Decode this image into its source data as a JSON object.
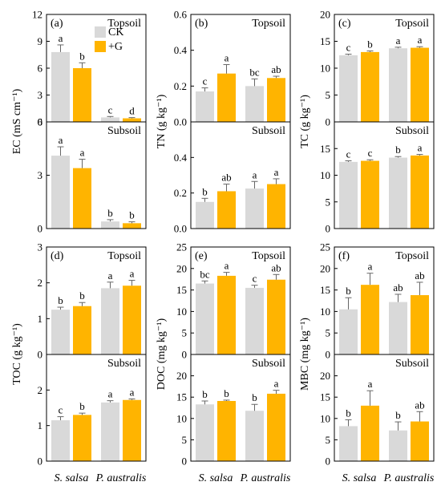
{
  "colors": {
    "CK": "#d9d9d9",
    "G": "#ffb400",
    "axis": "#000000",
    "error": "#666666"
  },
  "categories": [
    "S. salsa",
    "P. australis"
  ],
  "legend": {
    "entries": [
      {
        "key": "CK",
        "label": "CK"
      },
      {
        "key": "G",
        "label": "+G"
      }
    ],
    "position": "top-right of panel (a)"
  },
  "chart_data": [
    {
      "type": "bar",
      "panel": "(a)",
      "ylabel": "EC (mS cm⁻¹)",
      "categories": [
        "S. salsa",
        "P. australis"
      ],
      "subplots": [
        {
          "layer": "Topsoil",
          "ylim": [
            0,
            12
          ],
          "yticks": [
            0,
            3,
            6,
            9,
            12
          ],
          "series": [
            {
              "name": "CK",
              "values": [
                7.8,
                0.5
              ],
              "errors": [
                0.8,
                0.1
              ],
              "sig": [
                "a",
                "c"
              ]
            },
            {
              "name": "+G",
              "values": [
                6.0,
                0.4
              ],
              "errors": [
                0.6,
                0.08
              ],
              "sig": [
                "b",
                "d"
              ]
            }
          ]
        },
        {
          "layer": "Subsoil",
          "ylim": [
            0,
            6
          ],
          "yticks": [
            0,
            3,
            6
          ],
          "series": [
            {
              "name": "CK",
              "values": [
                4.1,
                0.4
              ],
              "errors": [
                0.5,
                0.1
              ],
              "sig": [
                "a",
                "b"
              ]
            },
            {
              "name": "+G",
              "values": [
                3.4,
                0.3
              ],
              "errors": [
                0.5,
                0.08
              ],
              "sig": [
                "a",
                "b"
              ]
            }
          ]
        }
      ]
    },
    {
      "type": "bar",
      "panel": "(b)",
      "ylabel": "TN (g kg⁻¹)",
      "categories": [
        "S. salsa",
        "P. australis"
      ],
      "subplots": [
        {
          "layer": "Topsoil",
          "ylim": [
            0,
            0.6
          ],
          "yticks": [
            0.0,
            0.2,
            0.4,
            0.6
          ],
          "series": [
            {
              "name": "CK",
              "values": [
                0.17,
                0.2
              ],
              "errors": [
                0.02,
                0.04
              ],
              "sig": [
                "c",
                "bc"
              ]
            },
            {
              "name": "+G",
              "values": [
                0.27,
                0.245
              ],
              "errors": [
                0.05,
                0.01
              ],
              "sig": [
                "a",
                "ab"
              ]
            }
          ]
        },
        {
          "layer": "Subsoil",
          "ylim": [
            0,
            0.6
          ],
          "yticks": [
            0.0,
            0.2,
            0.4
          ],
          "series": [
            {
              "name": "CK",
              "values": [
                0.15,
                0.225
              ],
              "errors": [
                0.02,
                0.04
              ],
              "sig": [
                "b",
                "a"
              ]
            },
            {
              "name": "+G",
              "values": [
                0.21,
                0.25
              ],
              "errors": [
                0.04,
                0.03
              ],
              "sig": [
                "ab",
                "a"
              ]
            }
          ]
        }
      ]
    },
    {
      "type": "bar",
      "panel": "(c)",
      "ylabel": "TC (g kg⁻¹)",
      "categories": [
        "S. salsa",
        "P. australis"
      ],
      "subplots": [
        {
          "layer": "Topsoil",
          "ylim": [
            0,
            20
          ],
          "yticks": [
            0,
            5,
            10,
            15,
            20
          ],
          "series": [
            {
              "name": "CK",
              "values": [
                12.4,
                13.7
              ],
              "errors": [
                0.2,
                0.2
              ],
              "sig": [
                "c",
                "a"
              ]
            },
            {
              "name": "+G",
              "values": [
                13.0,
                13.8
              ],
              "errors": [
                0.2,
                0.2
              ],
              "sig": [
                "b",
                "a"
              ]
            }
          ]
        },
        {
          "layer": "Subsoil",
          "ylim": [
            0,
            20
          ],
          "yticks": [
            0,
            5,
            10,
            15
          ],
          "series": [
            {
              "name": "CK",
              "values": [
                12.5,
                13.3
              ],
              "errors": [
                0.2,
                0.2
              ],
              "sig": [
                "c",
                "b"
              ]
            },
            {
              "name": "+G",
              "values": [
                12.7,
                13.7
              ],
              "errors": [
                0.2,
                0.2
              ],
              "sig": [
                "c",
                "a"
              ]
            }
          ]
        }
      ]
    },
    {
      "type": "bar",
      "panel": "(d)",
      "ylabel": "TOC (g kg⁻¹)",
      "categories": [
        "S. salsa",
        "P. australis"
      ],
      "subplots": [
        {
          "layer": "Topsoil",
          "ylim": [
            0,
            3
          ],
          "yticks": [
            0,
            1,
            2,
            3
          ],
          "series": [
            {
              "name": "CK",
              "values": [
                1.25,
                1.85
              ],
              "errors": [
                0.07,
                0.17
              ],
              "sig": [
                "b",
                "a"
              ]
            },
            {
              "name": "+G",
              "values": [
                1.35,
                1.92
              ],
              "errors": [
                0.1,
                0.15
              ],
              "sig": [
                "b",
                "a"
              ]
            }
          ]
        },
        {
          "layer": "Subsoil",
          "ylim": [
            0,
            3
          ],
          "yticks": [
            0,
            1,
            2
          ],
          "series": [
            {
              "name": "CK",
              "values": [
                1.15,
                1.65
              ],
              "errors": [
                0.1,
                0.05
              ],
              "sig": [
                "c",
                "a"
              ]
            },
            {
              "name": "+G",
              "values": [
                1.3,
                1.72
              ],
              "errors": [
                0.05,
                0.03
              ],
              "sig": [
                "b",
                "a"
              ]
            }
          ]
        }
      ]
    },
    {
      "type": "bar",
      "panel": "(e)",
      "ylabel": "DOC (mg kg⁻¹)",
      "categories": [
        "S. salsa",
        "P. australis"
      ],
      "subplots": [
        {
          "layer": "Topsoil",
          "ylim": [
            0,
            25
          ],
          "yticks": [
            0,
            5,
            10,
            15,
            20,
            25
          ],
          "series": [
            {
              "name": "CK",
              "values": [
                16.5,
                15.5
              ],
              "errors": [
                0.6,
                0.6
              ],
              "sig": [
                "bc",
                "c"
              ]
            },
            {
              "name": "+G",
              "values": [
                18.3,
                17.4
              ],
              "errors": [
                0.8,
                1.2
              ],
              "sig": [
                "a",
                "ab"
              ]
            }
          ]
        },
        {
          "layer": "Subsoil",
          "ylim": [
            0,
            25
          ],
          "yticks": [
            0,
            5,
            10,
            15,
            20
          ],
          "series": [
            {
              "name": "CK",
              "values": [
                13.3,
                11.8
              ],
              "errors": [
                0.8,
                1.5
              ],
              "sig": [
                "b",
                "b"
              ]
            },
            {
              "name": "+G",
              "values": [
                14.1,
                15.8
              ],
              "errors": [
                0.2,
                0.8
              ],
              "sig": [
                "b",
                "a"
              ]
            }
          ]
        }
      ]
    },
    {
      "type": "bar",
      "panel": "(f)",
      "ylabel": "MBC (mg kg⁻¹)",
      "categories": [
        "S. salsa",
        "P. australis"
      ],
      "subplots": [
        {
          "layer": "Topsoil",
          "ylim": [
            0,
            25
          ],
          "yticks": [
            0,
            5,
            10,
            15,
            20,
            25
          ],
          "series": [
            {
              "name": "CK",
              "values": [
                10.5,
                12.2
              ],
              "errors": [
                2.7,
                1.8
              ],
              "sig": [
                "b",
                "ab"
              ]
            },
            {
              "name": "+G",
              "values": [
                16.2,
                13.8
              ],
              "errors": [
                2.7,
                3.0
              ],
              "sig": [
                "a",
                "ab"
              ]
            }
          ]
        },
        {
          "layer": "Subsoil",
          "ylim": [
            0,
            25
          ],
          "yticks": [
            0,
            5,
            10,
            15,
            20
          ],
          "series": [
            {
              "name": "CK",
              "values": [
                8.2,
                7.2
              ],
              "errors": [
                1.5,
                2.0
              ],
              "sig": [
                "b",
                "b"
              ]
            },
            {
              "name": "+G",
              "values": [
                13.0,
                9.3
              ],
              "errors": [
                3.5,
                2.3
              ],
              "sig": [
                "a",
                "ab"
              ]
            }
          ]
        }
      ]
    }
  ]
}
